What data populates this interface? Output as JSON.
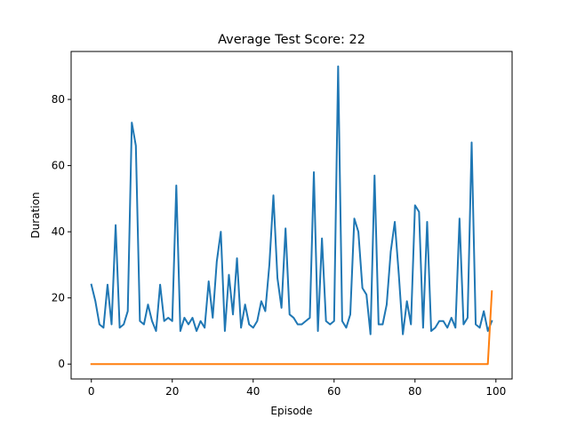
{
  "chart_data": {
    "type": "line",
    "title": "Average Test Score: 22",
    "xlabel": "Episode",
    "ylabel": "Duration",
    "xlim": [
      -5,
      104
    ],
    "ylim": [
      -4.5,
      94.5
    ],
    "xticks": [
      0,
      20,
      40,
      60,
      80,
      100
    ],
    "yticks": [
      0,
      20,
      40,
      60,
      80
    ],
    "grid": false,
    "series": [
      {
        "color": "#1f77b4",
        "x": [
          0,
          1,
          2,
          3,
          4,
          5,
          6,
          7,
          8,
          9,
          10,
          11,
          12,
          13,
          14,
          15,
          16,
          17,
          18,
          19,
          20,
          21,
          22,
          23,
          24,
          25,
          26,
          27,
          28,
          29,
          30,
          31,
          32,
          33,
          34,
          35,
          36,
          37,
          38,
          39,
          40,
          41,
          42,
          43,
          44,
          45,
          46,
          47,
          48,
          49,
          50,
          51,
          52,
          53,
          54,
          55,
          56,
          57,
          58,
          59,
          60,
          61,
          62,
          63,
          64,
          65,
          66,
          67,
          68,
          69,
          70,
          71,
          72,
          73,
          74,
          75,
          76,
          77,
          78,
          79,
          80,
          81,
          82,
          83,
          84,
          85,
          86,
          87,
          88,
          89,
          90,
          91,
          92,
          93,
          94,
          95,
          96,
          97,
          98,
          99
        ],
        "y": [
          24,
          19,
          12,
          11,
          24,
          12,
          42,
          11,
          12,
          16,
          73,
          66,
          13,
          12,
          18,
          13,
          10,
          24,
          13,
          14,
          13,
          54,
          10,
          14,
          12,
          14,
          10,
          13,
          11,
          25,
          14,
          31,
          40,
          10,
          27,
          15,
          32,
          11,
          18,
          12,
          11,
          13,
          19,
          16,
          30,
          51,
          26,
          17,
          41,
          15,
          14,
          12,
          12,
          13,
          14,
          58,
          10,
          38,
          13,
          12,
          13,
          90,
          13,
          11,
          15,
          44,
          40,
          23,
          21,
          9,
          57,
          12,
          12,
          18,
          34,
          43,
          27,
          9,
          19,
          12,
          48,
          46,
          11,
          43,
          10,
          11,
          13,
          13,
          11,
          14,
          11,
          44,
          12,
          14,
          67,
          12,
          11,
          16,
          10,
          13
        ]
      },
      {
        "color": "#ff7f0e",
        "x": [
          0,
          1,
          2,
          3,
          4,
          5,
          6,
          7,
          8,
          9,
          10,
          11,
          12,
          13,
          14,
          15,
          16,
          17,
          18,
          19,
          20,
          21,
          22,
          23,
          24,
          25,
          26,
          27,
          28,
          29,
          30,
          31,
          32,
          33,
          34,
          35,
          36,
          37,
          38,
          39,
          40,
          41,
          42,
          43,
          44,
          45,
          46,
          47,
          48,
          49,
          50,
          51,
          52,
          53,
          54,
          55,
          56,
          57,
          58,
          59,
          60,
          61,
          62,
          63,
          64,
          65,
          66,
          67,
          68,
          69,
          70,
          71,
          72,
          73,
          74,
          75,
          76,
          77,
          78,
          79,
          80,
          81,
          82,
          83,
          84,
          85,
          86,
          87,
          88,
          89,
          90,
          91,
          92,
          93,
          94,
          95,
          96,
          97,
          98,
          99
        ],
        "y": [
          0,
          0,
          0,
          0,
          0,
          0,
          0,
          0,
          0,
          0,
          0,
          0,
          0,
          0,
          0,
          0,
          0,
          0,
          0,
          0,
          0,
          0,
          0,
          0,
          0,
          0,
          0,
          0,
          0,
          0,
          0,
          0,
          0,
          0,
          0,
          0,
          0,
          0,
          0,
          0,
          0,
          0,
          0,
          0,
          0,
          0,
          0,
          0,
          0,
          0,
          0,
          0,
          0,
          0,
          0,
          0,
          0,
          0,
          0,
          0,
          0,
          0,
          0,
          0,
          0,
          0,
          0,
          0,
          0,
          0,
          0,
          0,
          0,
          0,
          0,
          0,
          0,
          0,
          0,
          0,
          0,
          0,
          0,
          0,
          0,
          0,
          0,
          0,
          0,
          0,
          0,
          0,
          0,
          0,
          0,
          0,
          0,
          0,
          0,
          22
        ]
      }
    ]
  }
}
